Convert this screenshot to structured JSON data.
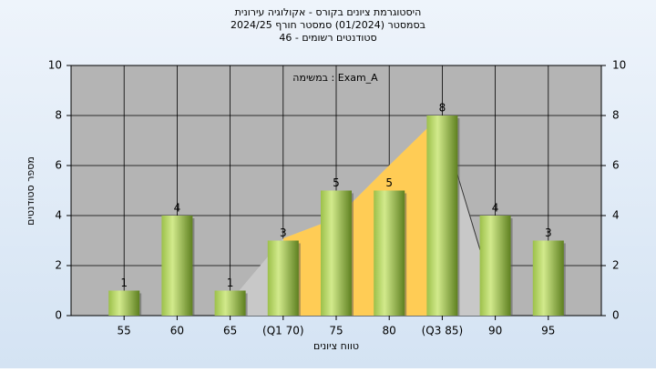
{
  "chart_data": {
    "type": "bar",
    "title": [
      "היסטוגרמת ציונים בקורס - אקולוגיה עירונית",
      "בסמסטר  (01/2024)  סמסטר חורף 2024/25",
      "סטודנטים רשומים - 46"
    ],
    "annotation": "במשימה : Exam_A",
    "x_label": "טווח ציונים",
    "y_label": "מספר סטודנטים",
    "categories": [
      "55",
      "60",
      "65",
      "(Q1 70)",
      "75",
      "80",
      "(Q3 85)",
      "90",
      "95"
    ],
    "values": [
      1,
      4,
      1,
      3,
      5,
      5,
      8,
      4,
      3
    ],
    "ylim": [
      0,
      10
    ],
    "yticks": [
      0,
      2,
      4,
      6,
      8,
      10
    ],
    "y2lim": [
      0,
      10
    ],
    "y2ticks": [
      0,
      2,
      4,
      6,
      8,
      10
    ],
    "grid": true
  }
}
